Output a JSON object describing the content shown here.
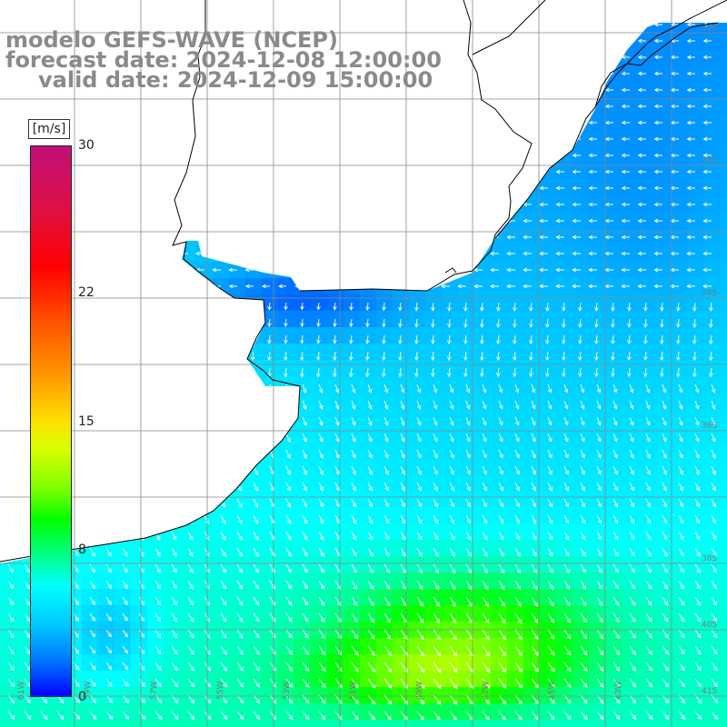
{
  "title": {
    "line1": "modelo GEFS-WAVE (NCEP)",
    "line2": "forecast date: 2024-12-08 12:00:00",
    "line3": "valid date: 2024-12-09 15:00:00"
  },
  "legend": {
    "unit": "[m/s]",
    "ticks": [
      {
        "value": 30,
        "label": "30"
      },
      {
        "value": 22,
        "label": "22"
      },
      {
        "value": 15,
        "label": "15"
      },
      {
        "value": 8,
        "label": "8"
      },
      {
        "value": 0,
        "label": "0"
      }
    ],
    "range": [
      0,
      30
    ]
  },
  "map": {
    "field": "wind speed",
    "colors": {
      "land": "#ffffff",
      "coast": "#000000",
      "grid": "#888888",
      "arrows": "#ffffff"
    },
    "lat_labels": [
      "30S",
      "32S",
      "34S",
      "36S",
      "38S",
      "40S",
      "41S"
    ],
    "lon_labels": [
      "61W",
      "59W",
      "57W",
      "55W",
      "53W",
      "51W",
      "49W",
      "47W",
      "45W",
      "43W"
    ]
  }
}
